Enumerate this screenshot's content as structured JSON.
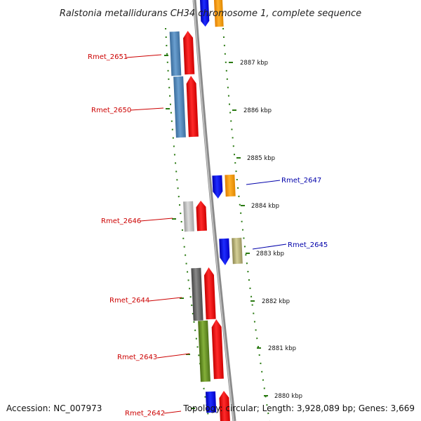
{
  "title": "Ralstonia metallidurans CH34 chromosome 1, complete sequence",
  "footer": {
    "accession": "Accession: NC_007973",
    "topology": "Topology: circular; Length: 3,928,089 bp; Genes: 3,669"
  },
  "colors": {
    "forward_label": "#cc0000",
    "reverse_label": "#0000aa",
    "tick": "#2a7a12",
    "backbone": "#8a8a8a"
  },
  "position_labels": [
    {
      "text": "2887 kbp",
      "kbp": 2887
    },
    {
      "text": "2886 kbp",
      "kbp": 2886
    },
    {
      "text": "2885 kbp",
      "kbp": 2885
    },
    {
      "text": "2884 kbp",
      "kbp": 2884
    },
    {
      "text": "2883 kbp",
      "kbp": 2883
    },
    {
      "text": "2882 kbp",
      "kbp": 2882
    },
    {
      "text": "2881 kbp",
      "kbp": 2881
    },
    {
      "text": "2880 kbp",
      "kbp": 2880
    }
  ],
  "gene_labels": [
    {
      "text": "Rmet_2651",
      "strand": "forward"
    },
    {
      "text": "Rmet_2650",
      "strand": "forward"
    },
    {
      "text": "Rmet_2647",
      "strand": "reverse"
    },
    {
      "text": "Rmet_2646",
      "strand": "forward"
    },
    {
      "text": "Rmet_2645",
      "strand": "reverse"
    },
    {
      "text": "Rmet_2644",
      "strand": "forward"
    },
    {
      "text": "Rmet_2643",
      "strand": "forward"
    },
    {
      "text": "Rmet_2642",
      "strand": "forward"
    }
  ]
}
